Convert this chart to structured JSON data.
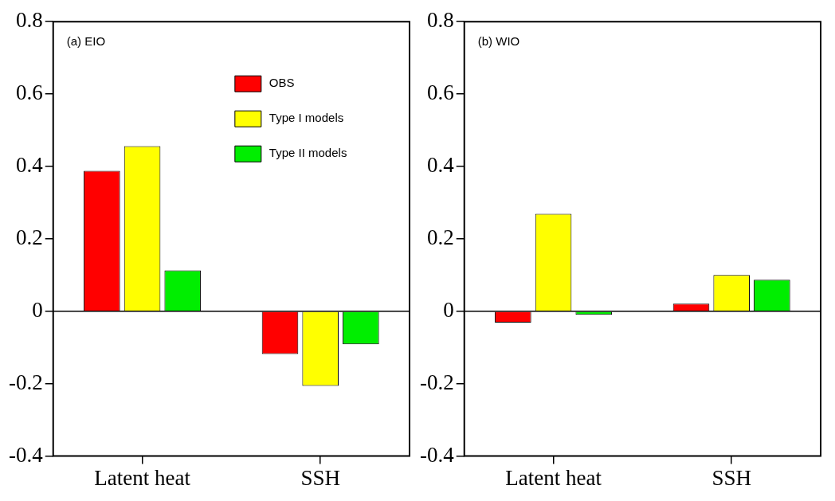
{
  "chart_data": [
    {
      "type": "bar",
      "title": "(a) EIO",
      "categories": [
        "Latent heat",
        "SSH"
      ],
      "series": [
        {
          "name": "OBS",
          "color": "#ff0000",
          "values": [
            0.388,
            -0.118
          ]
        },
        {
          "name": "Type I models",
          "color": "#ffff00",
          "values": [
            0.456,
            -0.206
          ]
        },
        {
          "name": "Type II models",
          "color": "#00ee00",
          "values": [
            0.113,
            -0.091
          ]
        }
      ],
      "ylim": [
        -0.4,
        0.8
      ],
      "yticks": [
        -0.4,
        -0.2,
        0,
        0.2,
        0.4,
        0.6,
        0.8
      ],
      "grid": false,
      "legend": "top right",
      "ref_lines": [
        {
          "axis": "y",
          "value": 0,
          "color": "#000000"
        }
      ]
    },
    {
      "type": "bar",
      "title": "(b) WIO",
      "categories": [
        "Latent heat",
        "SSH"
      ],
      "series": [
        {
          "color": "#ff0000",
          "values": [
            -0.031,
            0.021
          ]
        },
        {
          "color": "#ffff00",
          "values": [
            0.269,
            0.1
          ]
        },
        {
          "color": "#00ee00",
          "values": [
            -0.01,
            0.087
          ]
        }
      ],
      "ylim": [
        -0.4,
        0.8
      ],
      "yticks": [
        -0.4,
        -0.2,
        0,
        0.2,
        0.4,
        0.6,
        0.8
      ],
      "grid": false,
      "ref_lines": [
        {
          "axis": "y",
          "value": 0,
          "color": "#000000"
        }
      ]
    }
  ]
}
